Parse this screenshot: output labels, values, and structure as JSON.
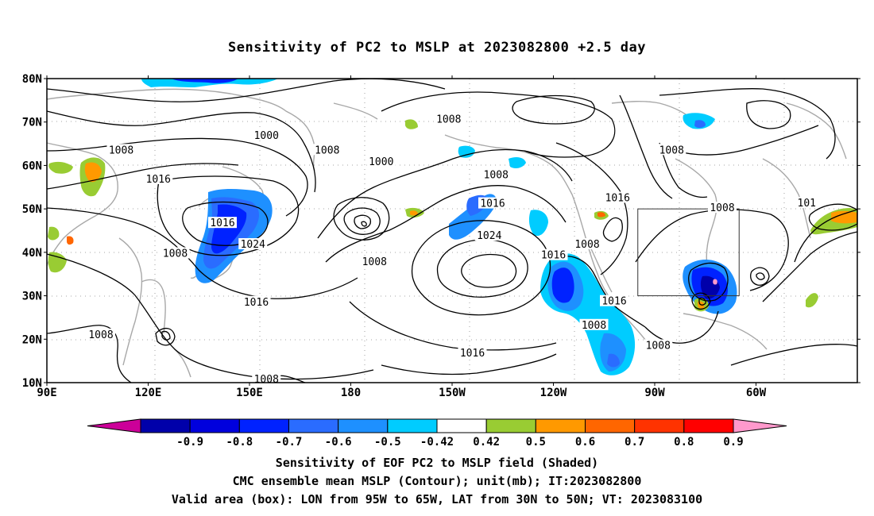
{
  "title": "Sensitivity of PC2 to MSLP at 2023082800 +2.5 day",
  "map": {
    "lat_labels": [
      "80N",
      "70N",
      "60N",
      "50N",
      "40N",
      "30N",
      "20N",
      "10N"
    ],
    "lon_labels": [
      "90E",
      "120E",
      "150E",
      "180",
      "150W",
      "120W",
      "90W",
      "60W"
    ],
    "isobar_labels": [
      {
        "text": "1000",
        "lon": 155,
        "lat": 66.8
      },
      {
        "text": "1008",
        "lon": 112,
        "lat": 63.5
      },
      {
        "text": "1016",
        "lon": 123,
        "lat": 56.8
      },
      {
        "text": "1016",
        "lon": 142,
        "lat": 46.7
      },
      {
        "text": "1008",
        "lon": 128,
        "lat": 39.7
      },
      {
        "text": "1024",
        "lon": 151,
        "lat": 41.8
      },
      {
        "text": "1016",
        "lon": 152,
        "lat": 28.5
      },
      {
        "text": "1008",
        "lon": 106,
        "lat": 21.0
      },
      {
        "text": "1008",
        "lon": 155,
        "lat": 10.7
      },
      {
        "text": "1008",
        "lon": 173,
        "lat": 63.5
      },
      {
        "text": "1000",
        "lon": -171,
        "lat": 60.8
      },
      {
        "text": "1008",
        "lon": -173,
        "lat": 37.8
      },
      {
        "text": "1008",
        "lon": -151,
        "lat": 70.6
      },
      {
        "text": "1008",
        "lon": -137,
        "lat": 57.8
      },
      {
        "text": "1016",
        "lon": -138,
        "lat": 51.2
      },
      {
        "text": "1024",
        "lon": -139,
        "lat": 43.8
      },
      {
        "text": "1016",
        "lon": -120,
        "lat": 39.3
      },
      {
        "text": "1016",
        "lon": -102,
        "lat": 28.7
      },
      {
        "text": "1008",
        "lon": -108,
        "lat": 23.2
      },
      {
        "text": "1016",
        "lon": -144,
        "lat": 16.8
      },
      {
        "text": "1008",
        "lon": -110,
        "lat": 41.8
      },
      {
        "text": "1016",
        "lon": -101,
        "lat": 52.5
      },
      {
        "text": "1008",
        "lon": -85,
        "lat": 63.5
      },
      {
        "text": "1008",
        "lon": -89,
        "lat": 18.5
      },
      {
        "text": "1008",
        "lon": -70,
        "lat": 50.2
      },
      {
        "text": "101",
        "lon": -45,
        "lat": 51.3
      }
    ]
  },
  "box": {
    "lon_min": -95,
    "lon_max": -65,
    "lat_min": 30,
    "lat_max": 50
  },
  "colorbar": {
    "labels": [
      "-0.9",
      "-0.8",
      "-0.7",
      "-0.6",
      "-0.5",
      "-0.42",
      "0.42",
      "0.5",
      "0.6",
      "0.7",
      "0.8",
      "0.9"
    ],
    "colors": [
      "#cc0099",
      "#0000aa",
      "#0000dd",
      "#0022ff",
      "#2a6cff",
      "#1e90ff",
      "#00ccff",
      "#ffffff",
      "#99cc33",
      "#ff9900",
      "#ff6600",
      "#ff3300",
      "#ff0000",
      "#ff99cc"
    ]
  },
  "footer": {
    "line1": "Sensitivity of EOF PC2 to MSLP field (Shaded)",
    "line2": "CMC ensemble mean MSLP (Contour); unit(mb); IT:2023082800",
    "line3": "Valid area (box): LON from 95W to 65W, LAT from 30N to 50N; VT: 2023083100"
  }
}
